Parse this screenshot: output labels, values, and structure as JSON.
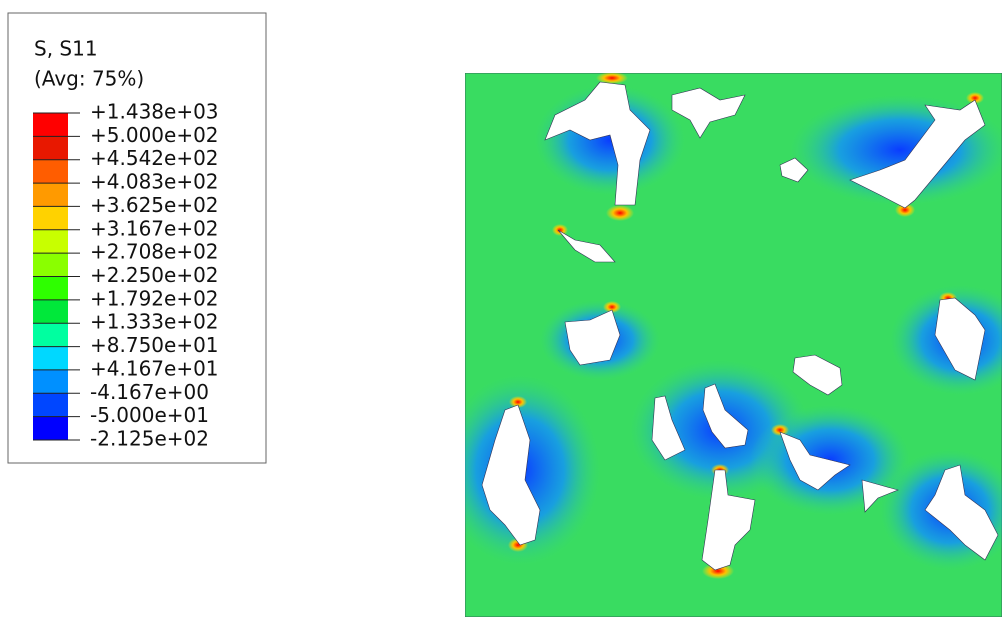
{
  "legend": {
    "title": "S, S11",
    "subtitle": "(Avg: 75%)",
    "labels": [
      "+1.438e+03",
      "+5.000e+02",
      "+4.542e+02",
      "+4.083e+02",
      "+3.625e+02",
      "+3.167e+02",
      "+2.708e+02",
      "+2.250e+02",
      "+1.792e+02",
      "+1.333e+02",
      "+8.750e+01",
      "+4.167e+01",
      "-4.167e+00",
      "-5.000e+01",
      "-2.125e+02"
    ],
    "colors": [
      "#ff0000",
      "#e81800",
      "#ff5d00",
      "#ff9a00",
      "#ffd200",
      "#c8ff00",
      "#8aff00",
      "#2eff00",
      "#00e83a",
      "#00ffa0",
      "#00d8ff",
      "#0090ff",
      "#0046ff",
      "#0000ff"
    ]
  }
}
